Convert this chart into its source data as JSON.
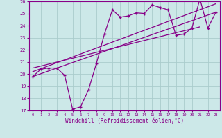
{
  "xlabel": "Windchill (Refroidissement éolien,°C)",
  "bg_color": "#cce8e8",
  "line_color": "#880088",
  "grid_color": "#aacccc",
  "xlim": [
    -0.5,
    23.5
  ],
  "ylim": [
    17,
    26
  ],
  "xticks": [
    0,
    1,
    2,
    3,
    4,
    5,
    6,
    7,
    8,
    9,
    10,
    11,
    12,
    13,
    14,
    15,
    16,
    17,
    18,
    19,
    20,
    21,
    22,
    23
  ],
  "yticks": [
    17,
    18,
    19,
    20,
    21,
    22,
    23,
    24,
    25,
    26
  ],
  "main_x": [
    0,
    1,
    2,
    3,
    4,
    5,
    6,
    7,
    8,
    9,
    10,
    11,
    12,
    13,
    14,
    15,
    16,
    17,
    18,
    19,
    20,
    21,
    22,
    23
  ],
  "main_y": [
    19.8,
    20.4,
    20.5,
    20.5,
    19.9,
    17.1,
    17.3,
    18.7,
    20.9,
    23.3,
    25.3,
    24.7,
    24.8,
    25.05,
    25.0,
    25.7,
    25.5,
    25.3,
    23.2,
    23.3,
    23.8,
    26.2,
    23.8,
    25.1
  ],
  "line1_x": [
    0,
    23
  ],
  "line1_y": [
    19.8,
    25.1
  ],
  "line2_x": [
    0,
    21
  ],
  "line2_y": [
    20.5,
    23.9
  ],
  "line3_x": [
    0,
    23
  ],
  "line3_y": [
    20.2,
    25.8
  ]
}
